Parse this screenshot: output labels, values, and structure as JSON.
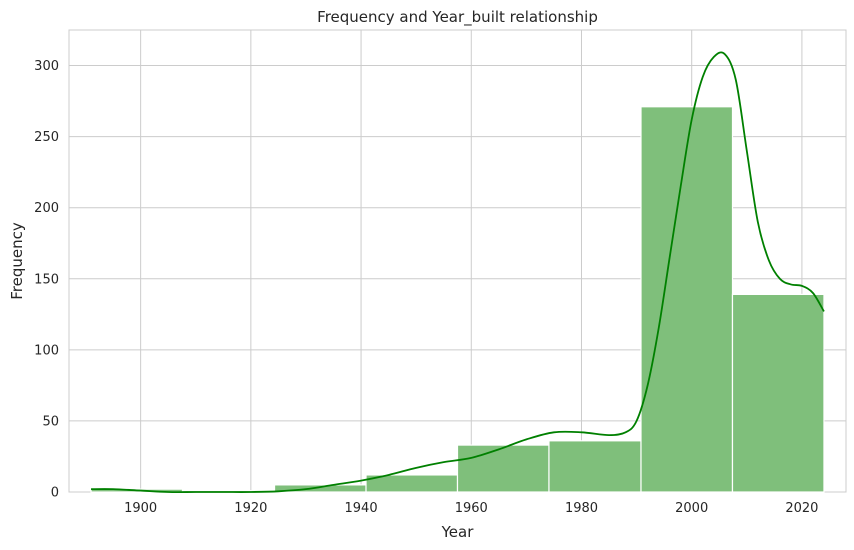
{
  "chart_data": {
    "type": "bar",
    "subtype": "histogram-with-kde",
    "title": "Frequency and Year_built relationship",
    "xlabel": "Year",
    "ylabel": "Frequency",
    "xlim": [
      1887,
      2028
    ],
    "ylim": [
      0,
      325
    ],
    "xticks": [
      1900,
      1920,
      1940,
      1960,
      1980,
      2000,
      2020
    ],
    "yticks": [
      0,
      50,
      100,
      150,
      200,
      250,
      300
    ],
    "grid": true,
    "bar_color": "#7fbf7b",
    "bar_edge_color": "#ffffff",
    "kde_color": "#008000",
    "bins": [
      {
        "x0": 1891,
        "x1": 1907.6,
        "count": 2
      },
      {
        "x0": 1907.6,
        "x1": 1924.3,
        "count": 1
      },
      {
        "x0": 1924.3,
        "x1": 1940.9,
        "count": 5
      },
      {
        "x0": 1940.9,
        "x1": 1957.5,
        "count": 12
      },
      {
        "x0": 1957.5,
        "x1": 1974.1,
        "count": 33
      },
      {
        "x0": 1974.1,
        "x1": 1990.8,
        "count": 36
      },
      {
        "x0": 1990.8,
        "x1": 2007.4,
        "count": 271
      },
      {
        "x0": 2007.4,
        "x1": 2024,
        "count": 139
      }
    ],
    "kde": {
      "x": [
        1891,
        1895,
        1900,
        1905,
        1910,
        1915,
        1920,
        1925,
        1930,
        1935,
        1940,
        1945,
        1950,
        1955,
        1960,
        1965,
        1970,
        1975,
        1980,
        1985,
        1988,
        1990,
        1992,
        1994,
        1996,
        1998,
        2000,
        2002,
        2004,
        2006,
        2008,
        2010,
        2012,
        2014,
        2016,
        2018,
        2020,
        2022,
        2024
      ],
      "y": [
        2,
        2,
        1,
        0,
        0,
        0,
        0,
        0.5,
        2,
        5,
        8,
        12,
        17,
        21,
        24,
        30,
        37,
        42,
        42,
        40,
        42,
        50,
        75,
        115,
        165,
        215,
        262,
        292,
        306,
        308,
        290,
        240,
        190,
        163,
        150,
        146,
        145,
        140,
        127
      ]
    }
  }
}
